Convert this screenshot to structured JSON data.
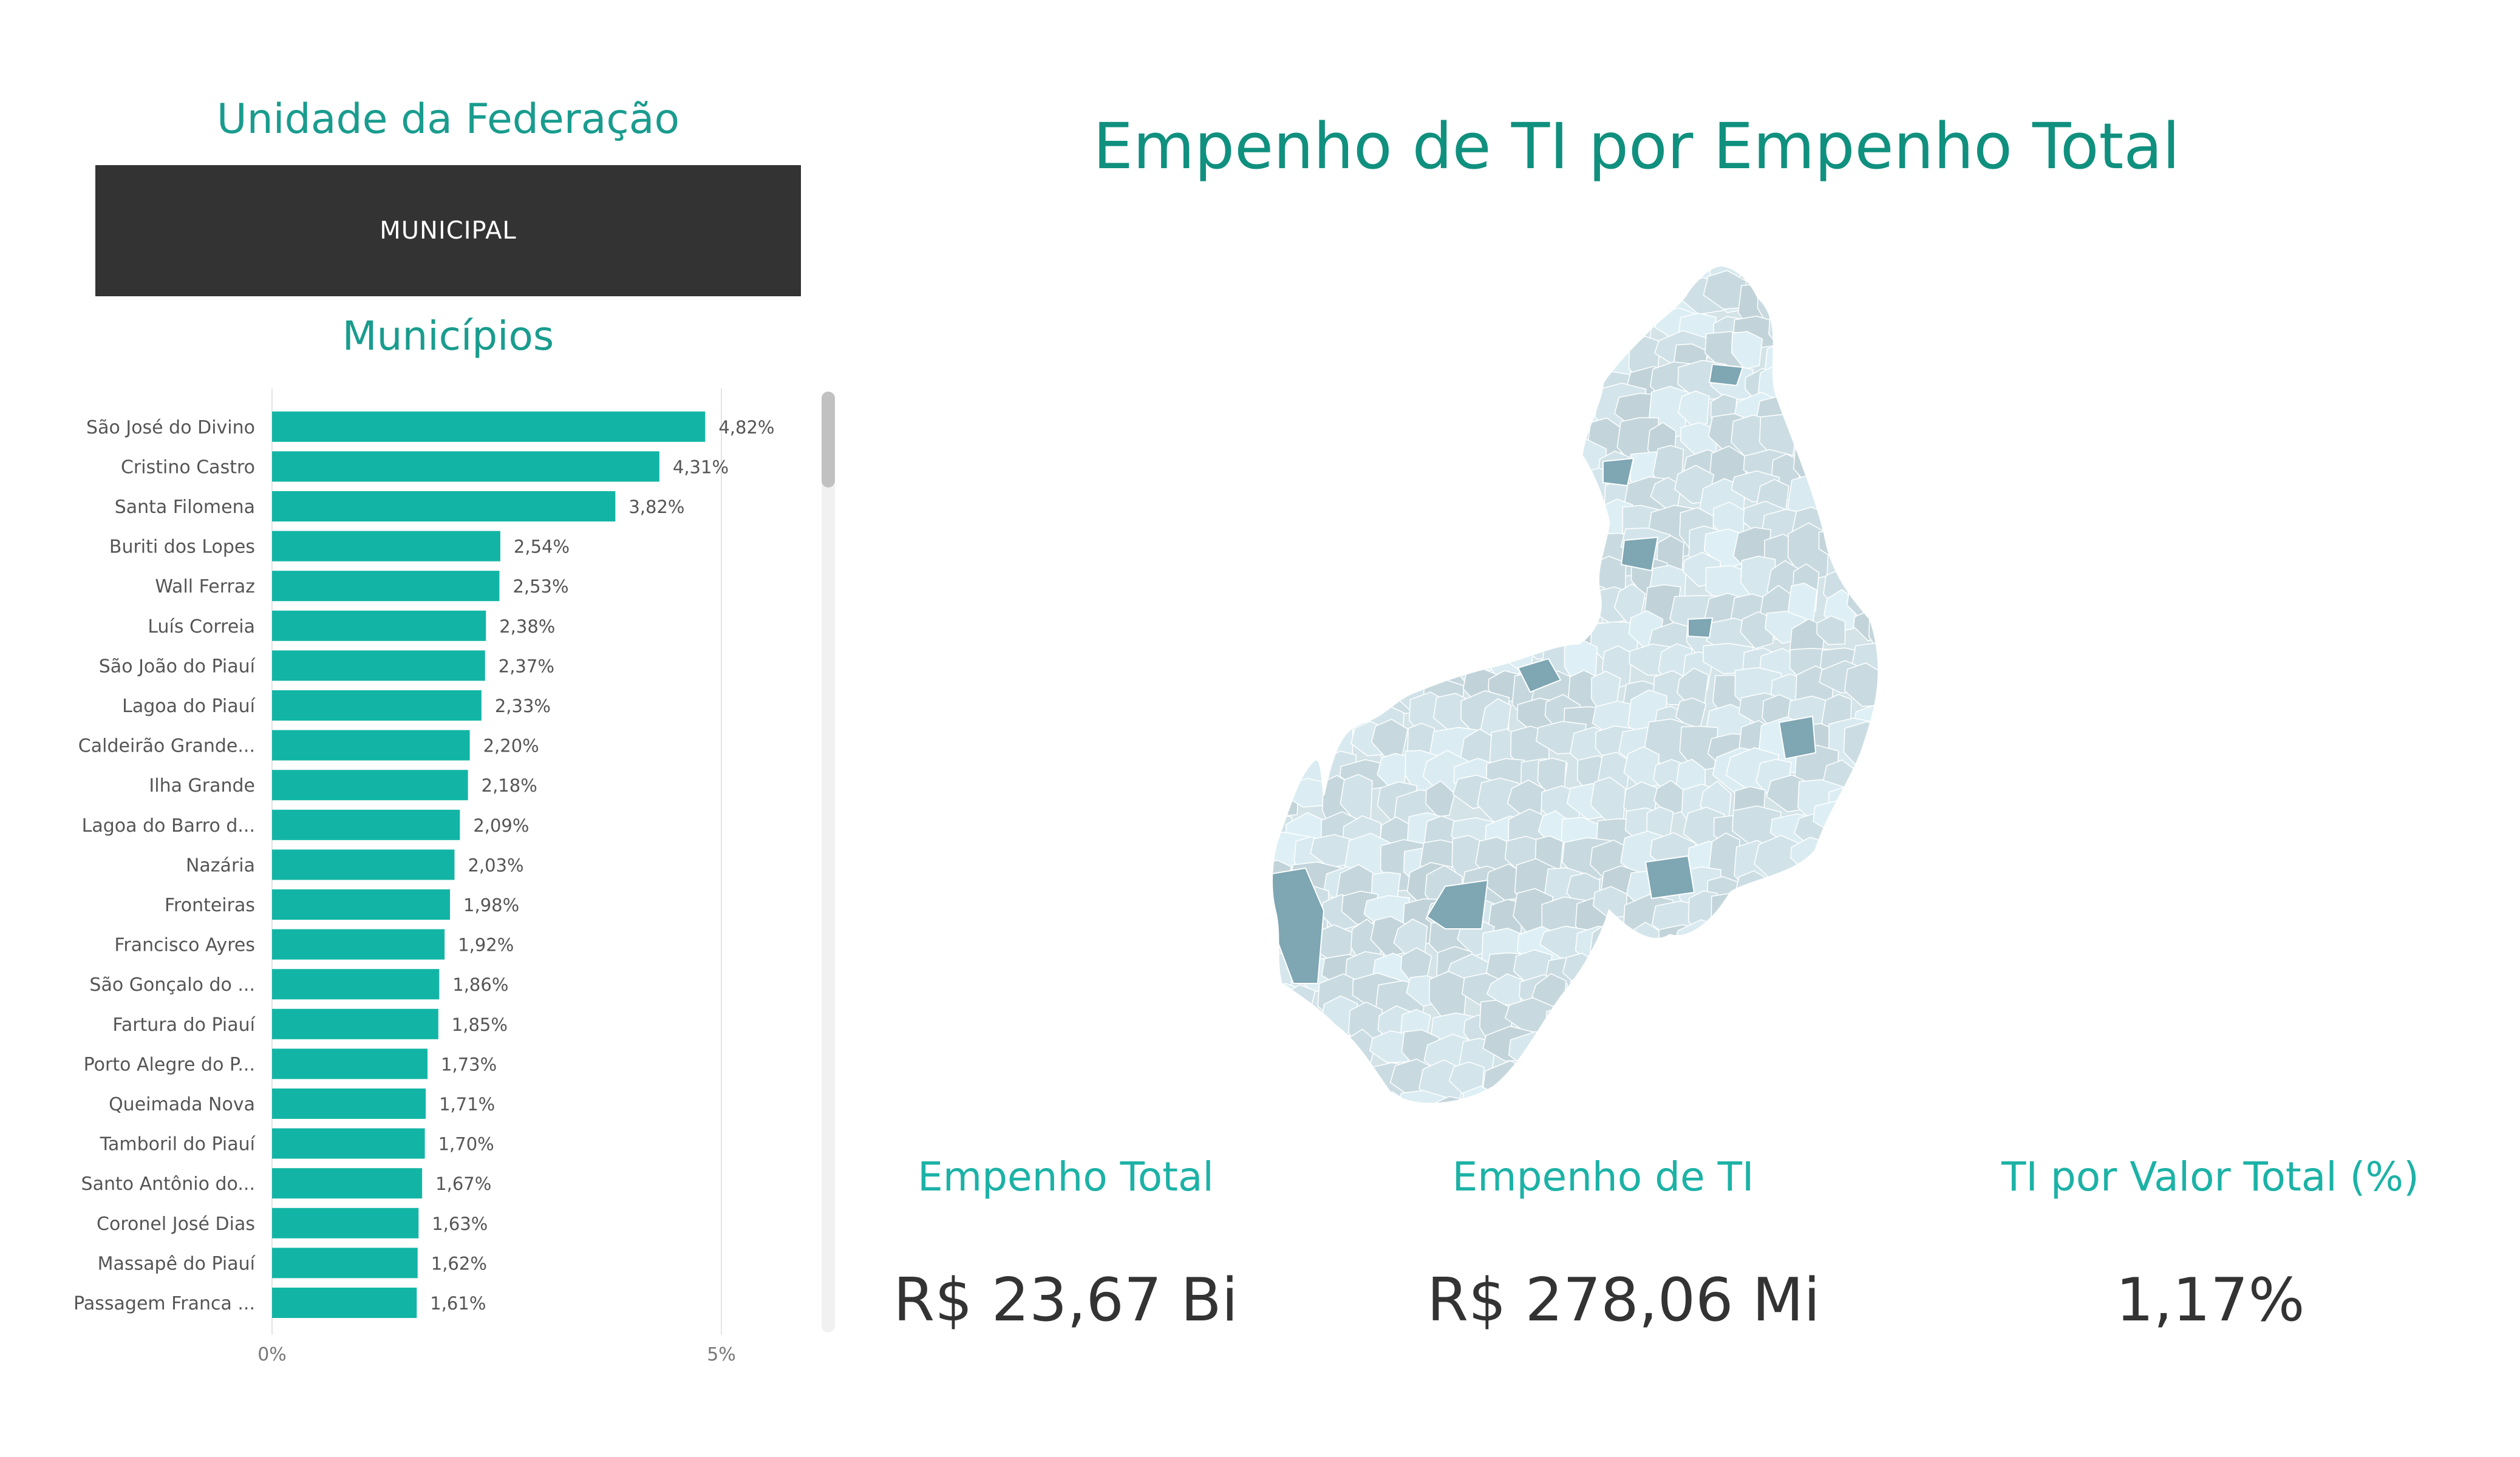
{
  "slicer": {
    "title": "Unidade da Federação",
    "selected": "MUNICIPAL"
  },
  "municipios": {
    "title": "Municípios"
  },
  "chart_data": {
    "type": "bar",
    "orientation": "horizontal",
    "categories": [
      "São José do Divino",
      "Cristino Castro",
      "Santa Filomena",
      "Buriti dos Lopes",
      "Wall Ferraz",
      "Luís Correia",
      "São João do Piauí",
      "Lagoa do Piauí",
      "Caldeirão Grande...",
      "Ilha Grande",
      "Lagoa do Barro d...",
      "Nazária",
      "Fronteiras",
      "Francisco Ayres",
      "São Gonçalo do ...",
      "Fartura do Piauí",
      "Porto Alegre do P...",
      "Queimada Nova",
      "Tamboril do Piauí",
      "Santo Antônio do...",
      "Coronel José Dias",
      "Massapê do Piauí",
      "Passagem Franca ..."
    ],
    "values": [
      4.82,
      4.31,
      3.82,
      2.54,
      2.53,
      2.38,
      2.37,
      2.33,
      2.2,
      2.18,
      2.09,
      2.03,
      1.98,
      1.92,
      1.86,
      1.85,
      1.73,
      1.71,
      1.7,
      1.67,
      1.63,
      1.62,
      1.61
    ],
    "data_labels": [
      "4,82%",
      "4,31%",
      "3,82%",
      "2,54%",
      "2,53%",
      "2,38%",
      "2,37%",
      "2,33%",
      "2,20%",
      "2,18%",
      "2,09%",
      "2,03%",
      "1,98%",
      "1,92%",
      "1,86%",
      "1,85%",
      "1,73%",
      "1,71%",
      "1,70%",
      "1,67%",
      "1,63%",
      "1,62%",
      "1,61%"
    ],
    "xlim": [
      0,
      5
    ],
    "x_ticks": [
      0,
      5
    ],
    "x_tick_labels": [
      "0%",
      "5%"
    ],
    "grid": true,
    "bar_color": "#12b5a5"
  },
  "map": {
    "title": "Empenho de TI por Empenho Total",
    "base_color": "#d3e3e8",
    "highlight_color": "#7ea6b3",
    "border_color": "#ffffff"
  },
  "kpis": {
    "total_label": "Empenho Total",
    "total_value": "R$ 23,67 Bi",
    "ti_label": "Empenho de TI",
    "ti_value": "R$ 278,06 Mi",
    "pct_label": "TI por Valor Total (%)",
    "pct_value": "1,17%"
  },
  "colors": {
    "accent": "#199c8e",
    "kpi_label": "#1cb2a6",
    "slicer_bg": "#333333",
    "text_dark": "#333333"
  }
}
